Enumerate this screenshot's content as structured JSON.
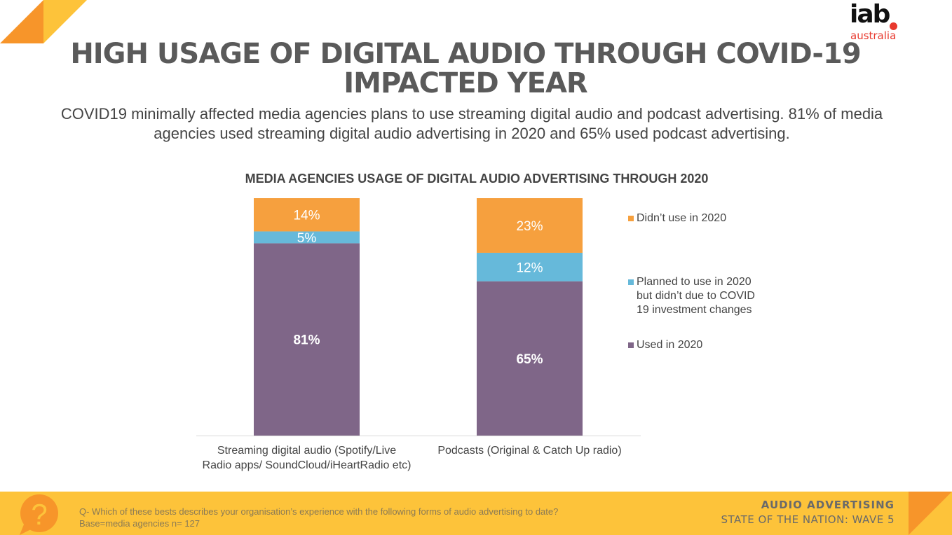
{
  "header": {
    "title_line1": "HIGH USAGE OF DIGITAL AUDIO THROUGH COVID-19",
    "title_line2": "IMPACTED YEAR",
    "subtitle_line1": "COVID19 minimally affected media agencies plans to use streaming digital audio and podcast advertising. 81% of media",
    "subtitle_line2": "agencies used streaming digital audio advertising in 2020 and 65% used podcast advertising."
  },
  "logo": {
    "main": "iab",
    "sub": "australia",
    "accent": "#e8392e"
  },
  "chart_data": {
    "type": "bar",
    "stacked": true,
    "title": "MEDIA AGENCIES USAGE OF DIGITAL AUDIO ADVERTISING THROUGH 2020",
    "categories": [
      [
        "Streaming digital audio (Spotify/Live",
        "Radio apps/ SoundCloud/iHeartRadio etc)"
      ],
      [
        "Podcasts (Original & Catch Up radio)"
      ]
    ],
    "series": [
      {
        "name": "Used in 2020",
        "color": "#7f6688",
        "values": [
          81,
          65
        ],
        "labels": [
          "81%",
          "65%"
        ]
      },
      {
        "name": "Planned to use in 2020 but didn’t due to COVID 19 investment changes",
        "legend_lines": [
          "Planned to use in 2020",
          "but didn’t due to COVID",
          "19 investment changes"
        ],
        "color": "#66b9da",
        "values": [
          5,
          12
        ],
        "labels": [
          "5%",
          "12%"
        ]
      },
      {
        "name": "Didn’t use in 2020",
        "legend_lines": [
          "Didn’t use in 2020"
        ],
        "color": "#f6a03e",
        "values": [
          14,
          23
        ],
        "labels": [
          "14%",
          "23%"
        ]
      }
    ],
    "legend_order": [
      2,
      1,
      0
    ],
    "legend_position": "right",
    "ylim": [
      0,
      100
    ],
    "grid": false,
    "xlabel": "",
    "ylabel": ""
  },
  "footer": {
    "question": "Q- Which of these bests describes your organisation’s experience with the following forms of audio advertising to date?",
    "base": "Base=media agencies n= 127",
    "brand_line1": "AUDIO ADVERTISING",
    "brand_line2": "STATE OF THE NATION: WAVE 5",
    "icon": "question-bubble-icon"
  },
  "colors": {
    "footer_bg": "#fdc33a",
    "accent_orange": "#f7952a",
    "accent_yellow": "#fdc33a"
  }
}
